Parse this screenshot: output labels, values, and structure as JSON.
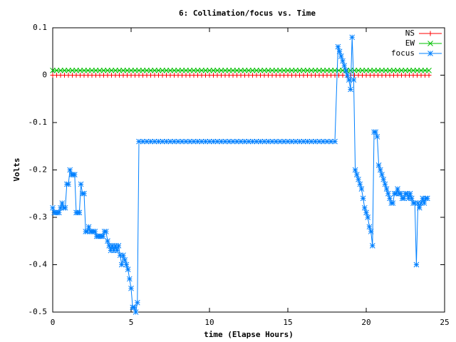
{
  "chart_data": {
    "type": "line",
    "title": "6: Collimation/focus vs. Time",
    "xlabel": "time (Elapse Hours)",
    "ylabel": "Volts",
    "xlim": [
      0,
      25
    ],
    "xticks": [
      0,
      5,
      10,
      15,
      20,
      25
    ],
    "ylim": [
      -0.5,
      0.1
    ],
    "yticks": [
      0.1,
      0,
      -0.1,
      -0.2,
      -0.3,
      -0.4,
      -0.5
    ],
    "legend": "top-right",
    "series": [
      {
        "name": "NS",
        "color": "#ff0000",
        "marker": "plus",
        "x": [
          0,
          0.25,
          0.5,
          0.75,
          1,
          1.25,
          1.5,
          1.75,
          2,
          2.25,
          2.5,
          2.75,
          3,
          3.25,
          3.5,
          3.75,
          4,
          4.25,
          4.5,
          4.75,
          5,
          5.25,
          5.5,
          5.75,
          6,
          6.25,
          6.5,
          6.75,
          7,
          7.25,
          7.5,
          7.75,
          8,
          8.25,
          8.5,
          8.75,
          9,
          9.25,
          9.5,
          9.75,
          10,
          10.25,
          10.5,
          10.75,
          11,
          11.25,
          11.5,
          11.75,
          12,
          12.25,
          12.5,
          12.75,
          13,
          13.25,
          13.5,
          13.75,
          14,
          14.25,
          14.5,
          14.75,
          15,
          15.25,
          15.5,
          15.75,
          16,
          16.25,
          16.5,
          16.75,
          17,
          17.25,
          17.5,
          17.75,
          18,
          18.25,
          18.5,
          18.75,
          19,
          19.25,
          19.5,
          19.75,
          20,
          20.25,
          20.5,
          20.75,
          21,
          21.25,
          21.5,
          21.75,
          22,
          22.25,
          22.5,
          22.75,
          23,
          23.25,
          23.5,
          23.75,
          24
        ],
        "values": [
          0,
          0,
          0,
          0,
          0,
          0,
          0,
          0,
          0,
          0,
          0,
          0,
          0,
          0,
          0,
          0,
          0,
          0,
          0,
          0,
          0,
          0,
          0,
          0,
          0,
          0,
          0,
          0,
          0,
          0,
          0,
          0,
          0,
          0,
          0,
          0,
          0,
          0,
          0,
          0,
          0,
          0,
          0,
          0,
          0,
          0,
          0,
          0,
          0,
          0,
          0,
          0,
          0,
          0,
          0,
          0,
          0,
          0,
          0,
          0,
          0,
          0,
          0,
          0,
          0,
          0,
          0,
          0,
          0,
          0,
          0,
          0,
          0,
          0,
          0,
          0,
          0,
          0,
          0,
          0,
          0,
          0,
          0,
          0,
          0,
          0,
          0,
          0,
          0,
          0,
          0,
          0,
          0,
          0,
          0,
          0,
          0
        ]
      },
      {
        "name": "EW",
        "color": "#00c000",
        "marker": "cross",
        "x": [
          0,
          0.25,
          0.5,
          0.75,
          1,
          1.25,
          1.5,
          1.75,
          2,
          2.25,
          2.5,
          2.75,
          3,
          3.25,
          3.5,
          3.75,
          4,
          4.25,
          4.5,
          4.75,
          5,
          5.25,
          5.5,
          5.75,
          6,
          6.25,
          6.5,
          6.75,
          7,
          7.25,
          7.5,
          7.75,
          8,
          8.25,
          8.5,
          8.75,
          9,
          9.25,
          9.5,
          9.75,
          10,
          10.25,
          10.5,
          10.75,
          11,
          11.25,
          11.5,
          11.75,
          12,
          12.25,
          12.5,
          12.75,
          13,
          13.25,
          13.5,
          13.75,
          14,
          14.25,
          14.5,
          14.75,
          15,
          15.25,
          15.5,
          15.75,
          16,
          16.25,
          16.5,
          16.75,
          17,
          17.25,
          17.5,
          17.75,
          18,
          18.25,
          18.5,
          18.75,
          19,
          19.25,
          19.5,
          19.75,
          20,
          20.25,
          20.5,
          20.75,
          21,
          21.25,
          21.5,
          21.75,
          22,
          22.25,
          22.5,
          22.75,
          23,
          23.25,
          23.5,
          23.75,
          24
        ],
        "values": [
          0.01,
          0.01,
          0.01,
          0.01,
          0.01,
          0.01,
          0.01,
          0.01,
          0.01,
          0.01,
          0.01,
          0.01,
          0.01,
          0.01,
          0.01,
          0.01,
          0.01,
          0.01,
          0.01,
          0.01,
          0.01,
          0.01,
          0.01,
          0.01,
          0.01,
          0.01,
          0.01,
          0.01,
          0.01,
          0.01,
          0.01,
          0.01,
          0.01,
          0.01,
          0.01,
          0.01,
          0.01,
          0.01,
          0.01,
          0.01,
          0.01,
          0.01,
          0.01,
          0.01,
          0.01,
          0.01,
          0.01,
          0.01,
          0.01,
          0.01,
          0.01,
          0.01,
          0.01,
          0.01,
          0.01,
          0.01,
          0.01,
          0.01,
          0.01,
          0.01,
          0.01,
          0.01,
          0.01,
          0.01,
          0.01,
          0.01,
          0.01,
          0.01,
          0.01,
          0.01,
          0.01,
          0.01,
          0.01,
          0.01,
          0.01,
          0.01,
          0.01,
          0.01,
          0.01,
          0.01,
          0.01,
          0.01,
          0.01,
          0.01,
          0.01,
          0.01,
          0.01,
          0.01,
          0.01,
          0.01,
          0.01,
          0.01,
          0.01,
          0.01,
          0.01,
          0.01,
          0.01
        ]
      },
      {
        "name": "focus",
        "color": "#0080ff",
        "marker": "star",
        "x": [
          0,
          0.1,
          0.2,
          0.3,
          0.4,
          0.5,
          0.6,
          0.7,
          0.8,
          0.9,
          1.0,
          1.1,
          1.2,
          1.3,
          1.4,
          1.5,
          1.6,
          1.7,
          1.8,
          1.9,
          2.0,
          2.1,
          2.2,
          2.3,
          2.4,
          2.5,
          2.6,
          2.7,
          2.8,
          2.9,
          3.0,
          3.1,
          3.2,
          3.3,
          3.4,
          3.5,
          3.6,
          3.7,
          3.8,
          3.9,
          4.0,
          4.1,
          4.2,
          4.3,
          4.4,
          4.5,
          4.6,
          4.7,
          4.8,
          4.9,
          5.0,
          5.1,
          5.2,
          5.3,
          5.4,
          5.5,
          5.75,
          6,
          6.25,
          6.5,
          6.75,
          7,
          7.25,
          7.5,
          7.75,
          8,
          8.25,
          8.5,
          8.75,
          9,
          9.25,
          9.5,
          9.75,
          10,
          10.25,
          10.5,
          10.75,
          11,
          11.25,
          11.5,
          11.75,
          12,
          12.25,
          12.5,
          12.75,
          13,
          13.25,
          13.5,
          13.75,
          14,
          14.25,
          14.5,
          14.75,
          15,
          15.25,
          15.5,
          15.75,
          16,
          16.25,
          16.5,
          16.75,
          17,
          17.25,
          17.5,
          17.75,
          18,
          18.2,
          18.3,
          18.4,
          18.5,
          18.6,
          18.7,
          18.8,
          18.9,
          19.0,
          19.1,
          19.2,
          19.3,
          19.4,
          19.5,
          19.6,
          19.7,
          19.8,
          19.9,
          20.0,
          20.1,
          20.2,
          20.3,
          20.4,
          20.5,
          20.6,
          20.7,
          20.8,
          20.9,
          21.0,
          21.1,
          21.2,
          21.3,
          21.4,
          21.5,
          21.6,
          21.7,
          21.8,
          21.9,
          22.0,
          22.1,
          22.2,
          22.3,
          22.4,
          22.5,
          22.6,
          22.7,
          22.8,
          22.9,
          23.0,
          23.1,
          23.2,
          23.3,
          23.4,
          23.5,
          23.6,
          23.7,
          23.8,
          23.9
        ],
        "values": [
          -0.28,
          -0.29,
          -0.29,
          -0.29,
          -0.29,
          -0.28,
          -0.27,
          -0.28,
          -0.28,
          -0.23,
          -0.23,
          -0.2,
          -0.21,
          -0.21,
          -0.21,
          -0.29,
          -0.29,
          -0.29,
          -0.23,
          -0.25,
          -0.25,
          -0.33,
          -0.33,
          -0.32,
          -0.33,
          -0.33,
          -0.33,
          -0.33,
          -0.34,
          -0.34,
          -0.34,
          -0.34,
          -0.34,
          -0.33,
          -0.33,
          -0.35,
          -0.36,
          -0.37,
          -0.36,
          -0.37,
          -0.36,
          -0.37,
          -0.36,
          -0.38,
          -0.4,
          -0.38,
          -0.39,
          -0.4,
          -0.41,
          -0.43,
          -0.45,
          -0.49,
          -0.49,
          -0.5,
          -0.48,
          -0.14,
          -0.14,
          -0.14,
          -0.14,
          -0.14,
          -0.14,
          -0.14,
          -0.14,
          -0.14,
          -0.14,
          -0.14,
          -0.14,
          -0.14,
          -0.14,
          -0.14,
          -0.14,
          -0.14,
          -0.14,
          -0.14,
          -0.14,
          -0.14,
          -0.14,
          -0.14,
          -0.14,
          -0.14,
          -0.14,
          -0.14,
          -0.14,
          -0.14,
          -0.14,
          -0.14,
          -0.14,
          -0.14,
          -0.14,
          -0.14,
          -0.14,
          -0.14,
          -0.14,
          -0.14,
          -0.14,
          -0.14,
          -0.14,
          -0.14,
          -0.14,
          -0.14,
          -0.14,
          -0.14,
          -0.14,
          -0.14,
          -0.14,
          -0.14,
          0.06,
          0.05,
          0.04,
          0.03,
          0.02,
          0.01,
          0,
          -0.01,
          -0.03,
          0.08,
          -0.01,
          -0.2,
          -0.21,
          -0.22,
          -0.23,
          -0.24,
          -0.26,
          -0.28,
          -0.29,
          -0.3,
          -0.32,
          -0.33,
          -0.36,
          -0.12,
          -0.12,
          -0.13,
          -0.19,
          -0.2,
          -0.21,
          -0.22,
          -0.23,
          -0.24,
          -0.25,
          -0.26,
          -0.27,
          -0.27,
          -0.25,
          -0.25,
          -0.24,
          -0.25,
          -0.25,
          -0.26,
          -0.26,
          -0.25,
          -0.25,
          -0.26,
          -0.25,
          -0.26,
          -0.27,
          -0.27,
          -0.4,
          -0.27,
          -0.28,
          -0.27,
          -0.26,
          -0.27,
          -0.26,
          -0.26
        ]
      }
    ]
  }
}
